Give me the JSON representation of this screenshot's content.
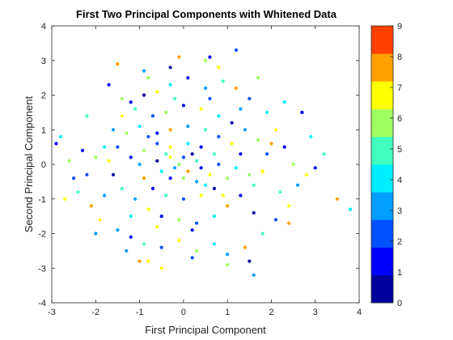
{
  "chart_data": {
    "type": "scatter",
    "title": "First Two Principal Components with Whitened Data",
    "xlabel": "First Principal Component",
    "ylabel": "Second Principal Component",
    "xlim": [
      -3,
      4
    ],
    "ylim": [
      -4,
      4
    ],
    "xticks": [
      "-3",
      "-2",
      "-1",
      "0",
      "1",
      "2",
      "3",
      "4"
    ],
    "yticks": [
      "-4",
      "-3",
      "-2",
      "-1",
      "0",
      "1",
      "2",
      "3",
      "4"
    ],
    "grid": false,
    "colorbar": {
      "range": [
        0,
        9
      ],
      "ticks": [
        "0",
        "1",
        "2",
        "3",
        "4",
        "5",
        "6",
        "7",
        "8",
        "9"
      ],
      "colors": [
        "#00009c",
        "#0000ff",
        "#0050ff",
        "#009fff",
        "#00efff",
        "#40ffbf",
        "#a0ff60",
        "#ffff00",
        "#ffa000",
        "#ff4000"
      ]
    },
    "points": [
      [
        -1.5,
        2.9,
        8
      ],
      [
        1.2,
        3.3,
        2
      ],
      [
        0.8,
        2.8,
        7
      ],
      [
        3.8,
        -1.3,
        4
      ],
      [
        3.5,
        -1.0,
        8
      ],
      [
        -2.8,
        0.8,
        4
      ],
      [
        -2.9,
        0.6,
        1
      ],
      [
        2.7,
        1.5,
        1
      ],
      [
        -1.0,
        -2.8,
        8
      ],
      [
        -0.8,
        -2.8,
        7
      ],
      [
        1.6,
        -3.2,
        3
      ],
      [
        3.2,
        0.3,
        5
      ],
      [
        -0.3,
        2.8,
        0
      ],
      [
        0.5,
        3.0,
        6
      ],
      [
        -0.8,
        2.5,
        6
      ],
      [
        -1.2,
        1.8,
        1
      ],
      [
        -1.4,
        1.4,
        7
      ],
      [
        -1.6,
        1.0,
        3
      ],
      [
        -1.8,
        0.5,
        4
      ],
      [
        -2.0,
        0.2,
        6
      ],
      [
        -2.2,
        -0.3,
        2
      ],
      [
        -2.4,
        -0.8,
        5
      ],
      [
        -2.1,
        -1.2,
        8
      ],
      [
        -1.9,
        -1.6,
        7
      ],
      [
        -1.5,
        -1.9,
        3
      ],
      [
        -1.2,
        -2.1,
        1
      ],
      [
        -0.9,
        -2.3,
        5
      ],
      [
        -0.5,
        -2.4,
        2
      ],
      [
        -0.1,
        -2.2,
        7
      ],
      [
        0.3,
        -2.5,
        6
      ],
      [
        0.7,
        -2.3,
        4
      ],
      [
        1.0,
        -2.6,
        3
      ],
      [
        1.4,
        -2.4,
        8
      ],
      [
        1.8,
        -2.0,
        5
      ],
      [
        2.1,
        -1.6,
        2
      ],
      [
        2.4,
        -1.2,
        7
      ],
      [
        2.6,
        -0.6,
        3
      ],
      [
        2.5,
        0.0,
        6
      ],
      [
        2.3,
        0.5,
        1
      ],
      [
        2.1,
        1.0,
        7
      ],
      [
        1.9,
        1.5,
        4
      ],
      [
        1.5,
        1.9,
        2
      ],
      [
        1.2,
        2.2,
        8
      ],
      [
        0.9,
        2.4,
        5
      ],
      [
        0.5,
        2.2,
        3
      ],
      [
        0.1,
        2.5,
        1
      ],
      [
        -0.3,
        2.3,
        4
      ],
      [
        -0.6,
        2.1,
        7
      ],
      [
        -0.9,
        2.0,
        0
      ],
      [
        -1.1,
        1.6,
        5
      ],
      [
        -0.7,
        1.4,
        2
      ],
      [
        -0.4,
        1.5,
        6
      ],
      [
        0.0,
        1.7,
        1
      ],
      [
        0.4,
        1.6,
        7
      ],
      [
        0.8,
        1.4,
        4
      ],
      [
        1.1,
        1.2,
        0
      ],
      [
        1.4,
        1.0,
        3
      ],
      [
        1.7,
        0.7,
        6
      ],
      [
        1.9,
        0.3,
        2
      ],
      [
        1.8,
        -0.2,
        7
      ],
      [
        1.6,
        -0.6,
        5
      ],
      [
        1.3,
        -0.9,
        1
      ],
      [
        1.0,
        -1.2,
        8
      ],
      [
        0.7,
        -1.5,
        4
      ],
      [
        0.3,
        -1.7,
        2
      ],
      [
        -0.1,
        -1.6,
        6
      ],
      [
        -0.5,
        -1.5,
        1
      ],
      [
        -0.8,
        -1.3,
        7
      ],
      [
        -1.1,
        -1.0,
        3
      ],
      [
        -1.4,
        -0.7,
        5
      ],
      [
        -1.6,
        -0.3,
        0
      ],
      [
        -1.7,
        0.1,
        7
      ],
      [
        -1.5,
        0.5,
        2
      ],
      [
        -1.3,
        0.9,
        6
      ],
      [
        -1.0,
        1.1,
        4
      ],
      [
        -0.6,
        0.9,
        1
      ],
      [
        -0.3,
        1.0,
        8
      ],
      [
        0.1,
        1.1,
        3
      ],
      [
        0.5,
        1.0,
        5
      ],
      [
        0.8,
        0.8,
        2
      ],
      [
        1.1,
        0.6,
        7
      ],
      [
        1.3,
        0.3,
        1
      ],
      [
        1.2,
        -0.1,
        4
      ],
      [
        1.0,
        -0.4,
        6
      ],
      [
        0.7,
        -0.7,
        0
      ],
      [
        0.4,
        -0.9,
        7
      ],
      [
        0.0,
        -1.0,
        2
      ],
      [
        -0.4,
        -0.9,
        5
      ],
      [
        -0.7,
        -0.7,
        1
      ],
      [
        -0.9,
        -0.4,
        8
      ],
      [
        -1.0,
        0.0,
        3
      ],
      [
        -0.9,
        0.4,
        6
      ],
      [
        -0.6,
        0.6,
        2
      ],
      [
        -0.3,
        0.5,
        7
      ],
      [
        0.1,
        0.6,
        4
      ],
      [
        0.4,
        0.5,
        1
      ],
      [
        0.7,
        0.3,
        5
      ],
      [
        0.8,
        0.0,
        2
      ],
      [
        0.6,
        -0.3,
        7
      ],
      [
        0.3,
        -0.5,
        3
      ],
      [
        0.0,
        -0.4,
        6
      ],
      [
        -0.3,
        -0.4,
        1
      ],
      [
        -0.5,
        -0.2,
        4
      ],
      [
        -0.6,
        0.1,
        0
      ],
      [
        -0.3,
        0.2,
        7
      ],
      [
        0.0,
        0.2,
        2
      ],
      [
        0.3,
        0.1,
        5
      ],
      [
        0.4,
        -0.1,
        1
      ],
      [
        0.1,
        -0.2,
        8
      ],
      [
        -0.2,
        -0.1,
        3
      ],
      [
        -0.1,
        0.0,
        6
      ],
      [
        0.2,
        0.3,
        0
      ],
      [
        -0.4,
        0.3,
        5
      ],
      [
        0.5,
        -0.6,
        4
      ],
      [
        -0.8,
        0.8,
        2
      ],
      [
        0.9,
        -0.9,
        7
      ],
      [
        -1.2,
        0.2,
        1
      ],
      [
        1.5,
        -0.3,
        6
      ],
      [
        -1.8,
        -0.9,
        3
      ],
      [
        2.0,
        0.6,
        8
      ],
      [
        -2.3,
        0.4,
        1
      ],
      [
        2.2,
        -0.8,
        5
      ],
      [
        -2.5,
        -0.4,
        2
      ],
      [
        2.8,
        -0.3,
        7
      ],
      [
        -2.6,
        0.1,
        6
      ],
      [
        3.0,
        -0.1,
        1
      ],
      [
        -1.2,
        -1.5,
        4
      ],
      [
        1.3,
        1.6,
        3
      ],
      [
        -0.2,
        1.9,
        5
      ],
      [
        0.2,
        -1.9,
        1
      ],
      [
        -0.6,
        -1.8,
        7
      ],
      [
        0.6,
        1.9,
        2
      ],
      [
        -1.4,
        1.9,
        6
      ],
      [
        1.6,
        -1.4,
        0
      ],
      [
        -2.0,
        -2.0,
        3
      ],
      [
        2.3,
        1.8,
        4
      ],
      [
        -0.1,
        3.1,
        8
      ],
      [
        0.2,
        -2.7,
        2
      ],
      [
        -2.7,
        -1.0,
        7
      ],
      [
        2.9,
        0.8,
        4
      ],
      [
        -1.7,
        2.3,
        1
      ],
      [
        1.7,
        2.5,
        6
      ],
      [
        -1.3,
        -2.5,
        3
      ],
      [
        1.5,
        -2.8,
        0
      ],
      [
        -0.5,
        -3.0,
        7
      ],
      [
        0.6,
        3.1,
        1
      ],
      [
        -2.2,
        1.4,
        5
      ],
      [
        2.4,
        -1.7,
        8
      ],
      [
        -0.9,
        2.7,
        3
      ],
      [
        1.0,
        -2.9,
        6
      ]
    ]
  }
}
